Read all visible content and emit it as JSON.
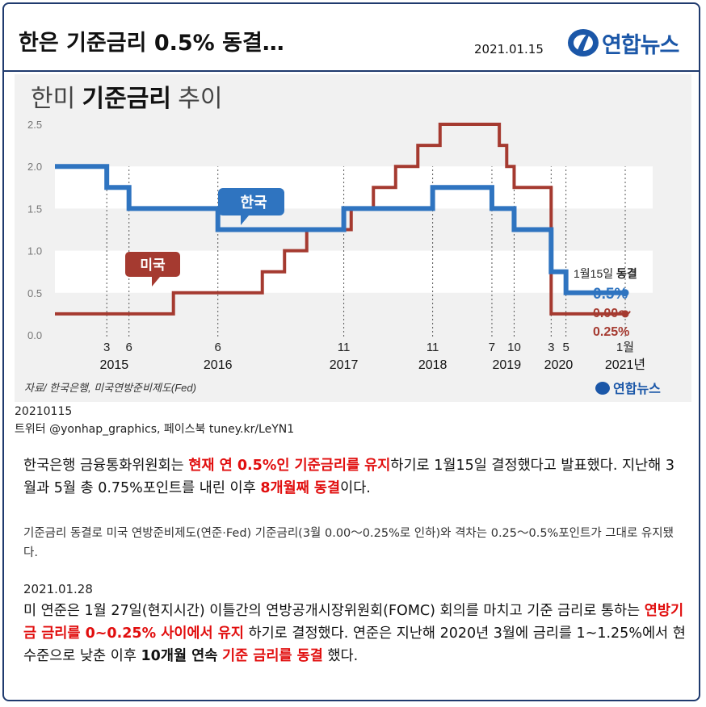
{
  "header": {
    "headline": "한은 기준금리 0.5% 동결…",
    "date": "2021.01.15",
    "logo_text": "연합뉴스",
    "logo_icon": "yonhap-logo-icon"
  },
  "chart_data": {
    "type": "line",
    "title_light_1": "한미",
    "title_bold": "기준금리",
    "title_light_2": "추이",
    "ylim": [
      0,
      2.5
    ],
    "yticks": [
      "0.0",
      "0.5",
      "1.0",
      "1.5",
      "2.0",
      "2.5"
    ],
    "grid": "horizontal bands",
    "x_month_labels": [
      "3",
      "6",
      "6",
      "11",
      "11",
      "7",
      "10",
      "3",
      "5",
      "1월"
    ],
    "x_year_labels": [
      "2015",
      "2016",
      "2017",
      "2018",
      "2019",
      "2020",
      "2021년"
    ],
    "series": [
      {
        "name": "한국",
        "color": "#2f74c0",
        "points": [
          [
            "2014-08",
            2.0
          ],
          [
            "2014-10",
            2.0
          ],
          [
            "2015-03",
            1.75
          ],
          [
            "2015-06",
            1.5
          ],
          [
            "2016-06",
            1.25
          ],
          [
            "2017-11",
            1.5
          ],
          [
            "2018-11",
            1.75
          ],
          [
            "2019-07",
            1.5
          ],
          [
            "2019-10",
            1.25
          ],
          [
            "2020-03",
            0.75
          ],
          [
            "2020-05",
            0.5
          ],
          [
            "2021-01",
            0.5
          ]
        ],
        "end_label": "0.5%"
      },
      {
        "name": "미국",
        "color": "#a53a30",
        "points": [
          [
            "2014-08",
            0.25
          ],
          [
            "2015-12",
            0.5
          ],
          [
            "2016-12",
            0.75
          ],
          [
            "2017-03",
            1.0
          ],
          [
            "2017-06",
            1.25
          ],
          [
            "2017-12",
            1.5
          ],
          [
            "2018-03",
            1.75
          ],
          [
            "2018-06",
            2.0
          ],
          [
            "2018-09",
            2.25
          ],
          [
            "2018-12",
            2.5
          ],
          [
            "2019-08",
            2.25
          ],
          [
            "2019-09",
            2.0
          ],
          [
            "2019-10",
            1.75
          ],
          [
            "2020-03",
            0.25
          ],
          [
            "2021-01",
            0.25
          ]
        ],
        "end_label_1": "0.00～",
        "end_label_2": "0.25%"
      }
    ],
    "annotation_date": "1월15일",
    "annotation_status": "동결",
    "source": "자료/ 한국은행, 미국연방준비제도(Fed)",
    "watermark": "연합뉴스"
  },
  "credits": {
    "code": "20210115",
    "social": "트위터 @yonhap_graphics, 페이스북 tuney.kr/LeYN1"
  },
  "body": {
    "p1_a": "한국은행 금융통화위원회는 ",
    "p1_red": "현재 연 0.5%인 기준금리를 유지",
    "p1_b": "하기로 1월15일 결정했다고 발표했다. 지난해 3월과 5월 총 0.75%포인트를 내린 이후 ",
    "p1_red2": "8개월째 동결",
    "p1_c": "이다.",
    "p2": "기준금리 동결로 미국 연방준비제도(연준·Fed) 기준금리(3월 0.00～0.25%로 인하)와 격차는 0.25～0.5%포인트가 그대로 유지됐다.",
    "date2": "2021.01.28",
    "p3_a": "미 연준은 1월 27일(현지시간) 이틀간의 연방공개시장위원회(FOMC) 회의를 마치고 기준 금리로 통하는 ",
    "p3_red": "연방기금 금리를 0~0.25% 사이에서 유지",
    "p3_b": " 하기로 결정했다. 연준은 지난해 2020년 3월에 금리를 1~1.25%에서 현 수준으로 낮춘 이후 ",
    "p3_bold": "10개월 연속",
    "p3_c": "  ",
    "p3_red2": "기준 금리를 동결",
    "p3_d": " 했다."
  }
}
